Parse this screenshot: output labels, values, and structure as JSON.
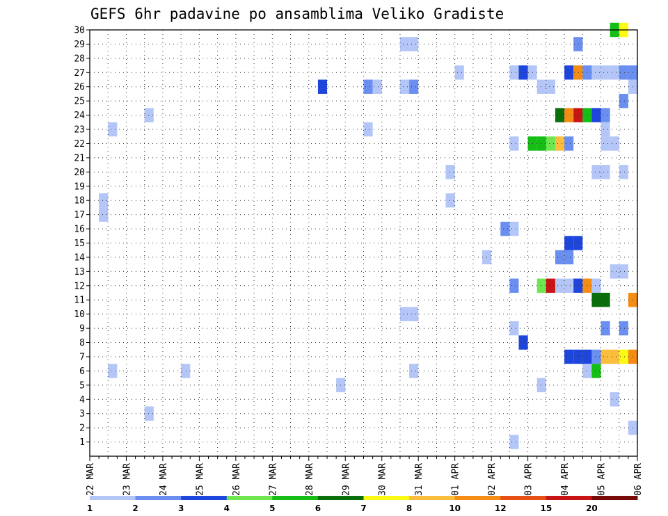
{
  "chart_data": {
    "type": "heatmap",
    "title": "GEFS 6hr padavine po ansamblima Veliko Gradiste",
    "xlabel": "",
    "ylabel": "",
    "x_ticks": [
      "22 MAR",
      "23 MAR",
      "24 MAR",
      "25 MAR",
      "26 MAR",
      "27 MAR",
      "28 MAR",
      "29 MAR",
      "30 MAR",
      "31 MAR",
      "01 APR",
      "02 APR",
      "03 APR",
      "04 APR",
      "05 APR",
      "06 APR"
    ],
    "x_range_days": [
      0,
      15
    ],
    "time_step_hours": 6,
    "y_ticks": [
      1,
      2,
      3,
      4,
      5,
      6,
      7,
      8,
      9,
      10,
      11,
      12,
      13,
      14,
      15,
      16,
      17,
      18,
      19,
      20,
      21,
      22,
      23,
      24,
      25,
      26,
      27,
      28,
      29,
      30
    ],
    "y_range": [
      0,
      30
    ],
    "grid": true,
    "grid_style": "dotted",
    "colorbar": {
      "placement": "bottom",
      "tick_labels": [
        "1",
        "2",
        "3",
        "4",
        "5",
        "6",
        "7",
        "8",
        "10",
        "12",
        "15",
        "20"
      ],
      "colors": [
        "#b3c6f7",
        "#6b8ff0",
        "#1e46dc",
        "#6ee650",
        "#14be14",
        "#0a6e0a",
        "#fafa14",
        "#fabe3c",
        "#f58c14",
        "#e65014",
        "#c81414",
        "#780a0a"
      ]
    },
    "cells_note": "each cell: [day offset from 22 MAR, member, color class index 0-11]",
    "cells": [
      [
        0.25,
        18,
        0
      ],
      [
        0.25,
        17,
        0
      ],
      [
        0.5,
        23,
        0
      ],
      [
        0.5,
        6,
        0
      ],
      [
        1.5,
        24,
        0
      ],
      [
        1.5,
        3,
        0
      ],
      [
        2.5,
        6,
        0
      ],
      [
        6.25,
        26,
        2
      ],
      [
        6.75,
        5,
        0
      ],
      [
        7.5,
        26,
        1
      ],
      [
        7.75,
        26,
        0
      ],
      [
        7.5,
        23,
        0
      ],
      [
        8.5,
        29,
        0
      ],
      [
        8.75,
        29,
        0
      ],
      [
        8.5,
        26,
        0
      ],
      [
        8.75,
        26,
        1
      ],
      [
        8.5,
        10,
        0
      ],
      [
        8.75,
        10,
        0
      ],
      [
        8.75,
        6,
        0
      ],
      [
        9.75,
        20,
        0
      ],
      [
        9.75,
        18,
        0
      ],
      [
        10.0,
        27,
        0
      ],
      [
        10.75,
        14,
        0
      ],
      [
        11.25,
        16,
        1
      ],
      [
        11.5,
        16,
        0
      ],
      [
        11.5,
        27,
        0
      ],
      [
        11.5,
        22,
        0
      ],
      [
        11.5,
        12,
        1
      ],
      [
        11.5,
        9,
        0
      ],
      [
        11.5,
        1,
        0
      ],
      [
        11.75,
        27,
        2
      ],
      [
        11.75,
        8,
        2
      ],
      [
        12.0,
        27,
        0
      ],
      [
        12.25,
        26,
        0
      ],
      [
        12.5,
        26,
        0
      ],
      [
        12.25,
        5,
        0
      ],
      [
        12.25,
        12,
        3
      ],
      [
        12.5,
        12,
        10
      ],
      [
        12.75,
        12,
        0
      ],
      [
        13.0,
        12,
        0
      ],
      [
        12.0,
        22,
        4
      ],
      [
        12.25,
        22,
        4
      ],
      [
        12.5,
        22,
        3
      ],
      [
        12.75,
        22,
        7
      ],
      [
        13.0,
        22,
        1
      ],
      [
        12.75,
        24,
        5
      ],
      [
        13.0,
        24,
        8
      ],
      [
        13.25,
        24,
        10
      ],
      [
        13.5,
        24,
        4
      ],
      [
        13.75,
        24,
        2
      ],
      [
        14.0,
        24,
        1
      ],
      [
        12.75,
        14,
        1
      ],
      [
        13.0,
        14,
        1
      ],
      [
        13.0,
        15,
        2
      ],
      [
        13.25,
        15,
        2
      ],
      [
        13.25,
        29,
        1
      ],
      [
        13.0,
        27,
        2
      ],
      [
        13.25,
        27,
        8
      ],
      [
        13.5,
        27,
        1
      ],
      [
        13.75,
        27,
        0
      ],
      [
        14.0,
        27,
        0
      ],
      [
        14.25,
        27,
        0
      ],
      [
        14.5,
        27,
        1
      ],
      [
        14.75,
        27,
        1
      ],
      [
        15.0,
        27,
        3
      ],
      [
        13.75,
        20,
        0
      ],
      [
        14.0,
        20,
        0
      ],
      [
        14.5,
        20,
        0
      ],
      [
        14.0,
        23,
        0
      ],
      [
        14.25,
        22,
        0
      ],
      [
        14.0,
        22,
        0
      ],
      [
        13.25,
        12,
        2
      ],
      [
        13.5,
        12,
        8
      ],
      [
        13.75,
        12,
        0
      ],
      [
        14.25,
        13,
        0
      ],
      [
        14.5,
        13,
        0
      ],
      [
        13.75,
        11,
        5
      ],
      [
        14.0,
        11,
        5
      ],
      [
        14.75,
        11,
        8
      ],
      [
        15.0,
        11,
        0
      ],
      [
        13.0,
        7,
        2
      ],
      [
        13.25,
        7,
        2
      ],
      [
        13.5,
        7,
        2
      ],
      [
        13.75,
        7,
        1
      ],
      [
        14.0,
        7,
        7
      ],
      [
        14.25,
        7,
        7
      ],
      [
        14.5,
        7,
        6
      ],
      [
        14.75,
        7,
        8
      ],
      [
        15.0,
        7,
        10
      ],
      [
        14.0,
        9,
        1
      ],
      [
        14.5,
        9,
        1
      ],
      [
        15.0,
        9,
        4
      ],
      [
        13.5,
        6,
        0
      ],
      [
        13.75,
        6,
        4
      ],
      [
        14.25,
        4,
        0
      ],
      [
        14.75,
        2,
        0
      ],
      [
        15.0,
        2,
        8
      ],
      [
        14.75,
        26,
        0
      ],
      [
        14.25,
        30,
        4
      ],
      [
        14.5,
        30,
        6
      ],
      [
        14.5,
        25,
        1
      ],
      [
        15.0,
        25,
        0
      ]
    ]
  }
}
